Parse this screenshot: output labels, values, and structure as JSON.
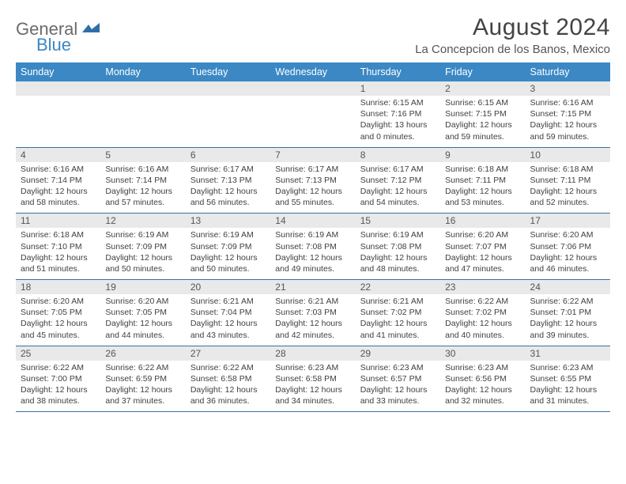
{
  "logo": {
    "word1": "General",
    "word2": "Blue"
  },
  "title": "August 2024",
  "location": "La Concepcion de los Banos, Mexico",
  "colors": {
    "header_bg": "#3b88c4",
    "header_text": "#ffffff",
    "daynum_bg": "#e9e9e9",
    "row_border": "#3b6fa0",
    "logo_gray": "#6b6b6b",
    "logo_blue": "#3b88c4",
    "text": "#404040"
  },
  "weekdays": [
    "Sunday",
    "Monday",
    "Tuesday",
    "Wednesday",
    "Thursday",
    "Friday",
    "Saturday"
  ],
  "weeks": [
    [
      {
        "empty": true
      },
      {
        "empty": true
      },
      {
        "empty": true
      },
      {
        "empty": true
      },
      {
        "day": "1",
        "sunrise": "Sunrise: 6:15 AM",
        "sunset": "Sunset: 7:16 PM",
        "daylight1": "Daylight: 13 hours",
        "daylight2": "and 0 minutes."
      },
      {
        "day": "2",
        "sunrise": "Sunrise: 6:15 AM",
        "sunset": "Sunset: 7:15 PM",
        "daylight1": "Daylight: 12 hours",
        "daylight2": "and 59 minutes."
      },
      {
        "day": "3",
        "sunrise": "Sunrise: 6:16 AM",
        "sunset": "Sunset: 7:15 PM",
        "daylight1": "Daylight: 12 hours",
        "daylight2": "and 59 minutes."
      }
    ],
    [
      {
        "day": "4",
        "sunrise": "Sunrise: 6:16 AM",
        "sunset": "Sunset: 7:14 PM",
        "daylight1": "Daylight: 12 hours",
        "daylight2": "and 58 minutes."
      },
      {
        "day": "5",
        "sunrise": "Sunrise: 6:16 AM",
        "sunset": "Sunset: 7:14 PM",
        "daylight1": "Daylight: 12 hours",
        "daylight2": "and 57 minutes."
      },
      {
        "day": "6",
        "sunrise": "Sunrise: 6:17 AM",
        "sunset": "Sunset: 7:13 PM",
        "daylight1": "Daylight: 12 hours",
        "daylight2": "and 56 minutes."
      },
      {
        "day": "7",
        "sunrise": "Sunrise: 6:17 AM",
        "sunset": "Sunset: 7:13 PM",
        "daylight1": "Daylight: 12 hours",
        "daylight2": "and 55 minutes."
      },
      {
        "day": "8",
        "sunrise": "Sunrise: 6:17 AM",
        "sunset": "Sunset: 7:12 PM",
        "daylight1": "Daylight: 12 hours",
        "daylight2": "and 54 minutes."
      },
      {
        "day": "9",
        "sunrise": "Sunrise: 6:18 AM",
        "sunset": "Sunset: 7:11 PM",
        "daylight1": "Daylight: 12 hours",
        "daylight2": "and 53 minutes."
      },
      {
        "day": "10",
        "sunrise": "Sunrise: 6:18 AM",
        "sunset": "Sunset: 7:11 PM",
        "daylight1": "Daylight: 12 hours",
        "daylight2": "and 52 minutes."
      }
    ],
    [
      {
        "day": "11",
        "sunrise": "Sunrise: 6:18 AM",
        "sunset": "Sunset: 7:10 PM",
        "daylight1": "Daylight: 12 hours",
        "daylight2": "and 51 minutes."
      },
      {
        "day": "12",
        "sunrise": "Sunrise: 6:19 AM",
        "sunset": "Sunset: 7:09 PM",
        "daylight1": "Daylight: 12 hours",
        "daylight2": "and 50 minutes."
      },
      {
        "day": "13",
        "sunrise": "Sunrise: 6:19 AM",
        "sunset": "Sunset: 7:09 PM",
        "daylight1": "Daylight: 12 hours",
        "daylight2": "and 50 minutes."
      },
      {
        "day": "14",
        "sunrise": "Sunrise: 6:19 AM",
        "sunset": "Sunset: 7:08 PM",
        "daylight1": "Daylight: 12 hours",
        "daylight2": "and 49 minutes."
      },
      {
        "day": "15",
        "sunrise": "Sunrise: 6:19 AM",
        "sunset": "Sunset: 7:08 PM",
        "daylight1": "Daylight: 12 hours",
        "daylight2": "and 48 minutes."
      },
      {
        "day": "16",
        "sunrise": "Sunrise: 6:20 AM",
        "sunset": "Sunset: 7:07 PM",
        "daylight1": "Daylight: 12 hours",
        "daylight2": "and 47 minutes."
      },
      {
        "day": "17",
        "sunrise": "Sunrise: 6:20 AM",
        "sunset": "Sunset: 7:06 PM",
        "daylight1": "Daylight: 12 hours",
        "daylight2": "and 46 minutes."
      }
    ],
    [
      {
        "day": "18",
        "sunrise": "Sunrise: 6:20 AM",
        "sunset": "Sunset: 7:05 PM",
        "daylight1": "Daylight: 12 hours",
        "daylight2": "and 45 minutes."
      },
      {
        "day": "19",
        "sunrise": "Sunrise: 6:20 AM",
        "sunset": "Sunset: 7:05 PM",
        "daylight1": "Daylight: 12 hours",
        "daylight2": "and 44 minutes."
      },
      {
        "day": "20",
        "sunrise": "Sunrise: 6:21 AM",
        "sunset": "Sunset: 7:04 PM",
        "daylight1": "Daylight: 12 hours",
        "daylight2": "and 43 minutes."
      },
      {
        "day": "21",
        "sunrise": "Sunrise: 6:21 AM",
        "sunset": "Sunset: 7:03 PM",
        "daylight1": "Daylight: 12 hours",
        "daylight2": "and 42 minutes."
      },
      {
        "day": "22",
        "sunrise": "Sunrise: 6:21 AM",
        "sunset": "Sunset: 7:02 PM",
        "daylight1": "Daylight: 12 hours",
        "daylight2": "and 41 minutes."
      },
      {
        "day": "23",
        "sunrise": "Sunrise: 6:22 AM",
        "sunset": "Sunset: 7:02 PM",
        "daylight1": "Daylight: 12 hours",
        "daylight2": "and 40 minutes."
      },
      {
        "day": "24",
        "sunrise": "Sunrise: 6:22 AM",
        "sunset": "Sunset: 7:01 PM",
        "daylight1": "Daylight: 12 hours",
        "daylight2": "and 39 minutes."
      }
    ],
    [
      {
        "day": "25",
        "sunrise": "Sunrise: 6:22 AM",
        "sunset": "Sunset: 7:00 PM",
        "daylight1": "Daylight: 12 hours",
        "daylight2": "and 38 minutes."
      },
      {
        "day": "26",
        "sunrise": "Sunrise: 6:22 AM",
        "sunset": "Sunset: 6:59 PM",
        "daylight1": "Daylight: 12 hours",
        "daylight2": "and 37 minutes."
      },
      {
        "day": "27",
        "sunrise": "Sunrise: 6:22 AM",
        "sunset": "Sunset: 6:58 PM",
        "daylight1": "Daylight: 12 hours",
        "daylight2": "and 36 minutes."
      },
      {
        "day": "28",
        "sunrise": "Sunrise: 6:23 AM",
        "sunset": "Sunset: 6:58 PM",
        "daylight1": "Daylight: 12 hours",
        "daylight2": "and 34 minutes."
      },
      {
        "day": "29",
        "sunrise": "Sunrise: 6:23 AM",
        "sunset": "Sunset: 6:57 PM",
        "daylight1": "Daylight: 12 hours",
        "daylight2": "and 33 minutes."
      },
      {
        "day": "30",
        "sunrise": "Sunrise: 6:23 AM",
        "sunset": "Sunset: 6:56 PM",
        "daylight1": "Daylight: 12 hours",
        "daylight2": "and 32 minutes."
      },
      {
        "day": "31",
        "sunrise": "Sunrise: 6:23 AM",
        "sunset": "Sunset: 6:55 PM",
        "daylight1": "Daylight: 12 hours",
        "daylight2": "and 31 minutes."
      }
    ]
  ]
}
